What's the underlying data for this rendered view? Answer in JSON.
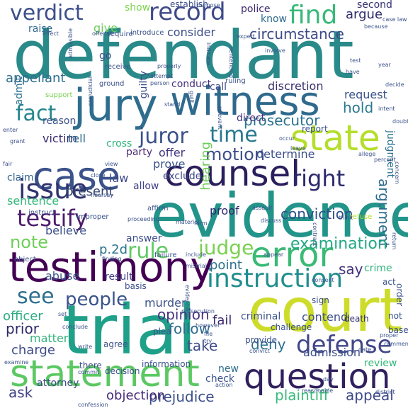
{
  "words": [
    {
      "text": "defendant",
      "color": "#2a8a8a"
    },
    {
      "text": "evidence",
      "color": "#22948a"
    },
    {
      "text": "trial",
      "color": "#1fa088"
    },
    {
      "text": "court",
      "color": "#cddc2a"
    },
    {
      "text": "jury",
      "color": "#2f6d8e"
    },
    {
      "text": "testimony",
      "color": "#440154"
    },
    {
      "text": "witness",
      "color": "#2f6a8d"
    },
    {
      "text": "statement",
      "color": "#5cc863"
    },
    {
      "text": "case",
      "color": "#3b528b"
    },
    {
      "text": "counsel",
      "color": "#2a1e5c"
    },
    {
      "text": "state",
      "color": "#b5de2b"
    },
    {
      "text": "error",
      "color": "#3aba76"
    },
    {
      "text": "question",
      "color": "#31205e"
    },
    {
      "text": "instruction",
      "color": "#218e8d"
    },
    {
      "text": "issue",
      "color": "#30336e"
    },
    {
      "text": "record",
      "color": "#3e4a89"
    },
    {
      "text": "find",
      "color": "#39b87a"
    },
    {
      "text": "verdict",
      "color": "#3c4e8a"
    },
    {
      "text": "fact",
      "color": "#25858e"
    },
    {
      "text": "time",
      "color": "#29788e"
    },
    {
      "text": "motion",
      "color": "#3d4d8a"
    },
    {
      "text": "judge",
      "color": "#7ad151"
    },
    {
      "text": "right",
      "color": "#2c2a6a"
    },
    {
      "text": "juror",
      "color": "#3b528b"
    },
    {
      "text": "defense",
      "color": "#404688"
    },
    {
      "text": "rule",
      "color": "#5ec962"
    },
    {
      "text": "people",
      "color": "#3a538b"
    },
    {
      "text": "see",
      "color": "#2d6f8e"
    },
    {
      "text": "testify",
      "color": "#4e1a6c"
    },
    {
      "text": "note",
      "color": "#6ece58"
    },
    {
      "text": "prosecutor",
      "color": "#2c728e"
    },
    {
      "text": "argument",
      "color": "#2e6c8e"
    },
    {
      "text": "examination",
      "color": "#22a785"
    },
    {
      "text": "conviction",
      "color": "#2f4f88"
    },
    {
      "text": "present",
      "color": "#34466e"
    },
    {
      "text": "plaintiff",
      "color": "#3ab97a"
    },
    {
      "text": "appeal",
      "color": "#3e4989"
    },
    {
      "text": "prejudice",
      "color": "#3c4f8a"
    },
    {
      "text": "objection",
      "color": "#432a74"
    },
    {
      "text": "ask",
      "color": "#414387"
    },
    {
      "text": "charge",
      "color": "#3d4b89"
    },
    {
      "text": "prior",
      "color": "#2c2a68"
    },
    {
      "text": "deny",
      "color": "#2b6f8e"
    },
    {
      "text": "take",
      "color": "#3e4c8a"
    },
    {
      "text": "officer",
      "color": "#2bac82"
    },
    {
      "text": "matter",
      "color": "#36b47e"
    },
    {
      "text": "murder",
      "color": "#3b528b"
    },
    {
      "text": "opinion",
      "color": "#46317e"
    },
    {
      "text": "follow",
      "color": "#2e6b8e"
    },
    {
      "text": "fail",
      "color": "#3a2a6f"
    },
    {
      "text": "point",
      "color": "#2e6f8e"
    },
    {
      "text": "say",
      "color": "#43317c"
    },
    {
      "text": "consider",
      "color": "#3b4d89"
    },
    {
      "text": "circumstance",
      "color": "#3e4a89"
    },
    {
      "text": "argue",
      "color": "#2b2a6c"
    },
    {
      "text": "second",
      "color": "#33306f"
    },
    {
      "text": "police",
      "color": "#3d2a70"
    },
    {
      "text": "know",
      "color": "#2e6a8e"
    },
    {
      "text": "show",
      "color": "#7fd34e"
    },
    {
      "text": "give",
      "color": "#6ccd5a"
    },
    {
      "text": "raise",
      "color": "#31688e"
    },
    {
      "text": "establish",
      "color": "#3c4e8a"
    },
    {
      "text": "appellant",
      "color": "#2e6d8e"
    },
    {
      "text": "discretion",
      "color": "#3a2f6e"
    },
    {
      "text": "hold",
      "color": "#2a788e"
    },
    {
      "text": "request",
      "color": "#3b528b"
    },
    {
      "text": "judgment",
      "color": "#2c728e"
    },
    {
      "text": "admit",
      "color": "#2d718e"
    },
    {
      "text": "victim",
      "color": "#3d2e70"
    },
    {
      "text": "tell",
      "color": "#2f6c8e"
    },
    {
      "text": "cross",
      "color": "#2fb47c"
    },
    {
      "text": "party",
      "color": "#4a2a74"
    },
    {
      "text": "offer",
      "color": "#453781"
    },
    {
      "text": "prove",
      "color": "#3b528b"
    },
    {
      "text": "determine",
      "color": "#3c4e8a"
    },
    {
      "text": "claim",
      "color": "#33628d"
    },
    {
      "text": "law",
      "color": "#3e4989"
    },
    {
      "text": "allow",
      "color": "#414387"
    },
    {
      "text": "exclude",
      "color": "#3f4788"
    },
    {
      "text": "sentence",
      "color": "#35b779"
    },
    {
      "text": "proof",
      "color": "#2c2a6a"
    },
    {
      "text": "believe",
      "color": "#3b4f8a"
    },
    {
      "text": "p.2d",
      "color": "#2c728e"
    },
    {
      "text": "answer",
      "color": "#3d4d8a"
    },
    {
      "text": "abuse",
      "color": "#3b528b"
    },
    {
      "text": "result",
      "color": "#424086"
    },
    {
      "text": "crime",
      "color": "#2fb47c"
    },
    {
      "text": "hearing",
      "color": "#6ece58"
    },
    {
      "text": "guilty",
      "color": "#3d4e8a"
    },
    {
      "text": "conduct",
      "color": "#46327e"
    },
    {
      "text": "call",
      "color": "#3e4c8a"
    },
    {
      "text": "report",
      "color": "#3b528b"
    },
    {
      "text": "direct",
      "color": "#46307c"
    },
    {
      "text": "contend",
      "color": "#3d4d8a"
    },
    {
      "text": "criminal",
      "color": "#3b528b"
    },
    {
      "text": "review",
      "color": "#35b779"
    },
    {
      "text": "admission",
      "color": "#3d4d8a"
    },
    {
      "text": "attorney",
      "color": "#3e4a89"
    },
    {
      "text": "reason",
      "color": "#3b528b"
    },
    {
      "text": "new",
      "color": "#2e6d8e"
    },
    {
      "text": "check",
      "color": "#3b528b"
    },
    {
      "text": "death",
      "color": "#2c2a6a"
    },
    {
      "text": "basis",
      "color": "#3c4e8a"
    },
    {
      "text": "agree",
      "color": "#3b528b"
    },
    {
      "text": "decision",
      "color": "#3b528b"
    },
    {
      "text": "information",
      "color": "#3b528b"
    },
    {
      "text": "there",
      "color": "#3d4d8a"
    },
    {
      "text": "provide",
      "color": "#3b528b"
    },
    {
      "text": "challenge",
      "color": "#3b528b"
    },
    {
      "text": "plea",
      "color": "#3b528b"
    },
    {
      "text": "sign",
      "color": "#3b528b"
    },
    {
      "text": "act",
      "color": "#3b528b"
    },
    {
      "text": "order",
      "color": "#3b528b"
    },
    {
      "text": "not",
      "color": "#3b528b"
    },
    {
      "text": "base",
      "color": "#3b528b"
    },
    {
      "text": "go",
      "color": "#3d4d8a"
    },
    {
      "text": "receive",
      "color": "#3b528b"
    },
    {
      "text": "introduce",
      "color": "#3b528b"
    },
    {
      "text": "require",
      "color": "#3b528b"
    },
    {
      "text": "support",
      "color": "#7ad151"
    },
    {
      "text": "ruling",
      "color": "#3b528b"
    },
    {
      "text": "ground",
      "color": "#3b528b"
    },
    {
      "text": "effect",
      "color": "#3b528b"
    },
    {
      "text": "offense",
      "color": "#3b528b"
    },
    {
      "text": "prosecution",
      "color": "#3b528b"
    },
    {
      "text": "refuse",
      "color": "#b5de2b"
    },
    {
      "text": "failure",
      "color": "#3b528b"
    },
    {
      "text": "include",
      "color": "#3b528b"
    },
    {
      "text": "appear",
      "color": "#3b528b"
    },
    {
      "text": "affirm",
      "color": "#3b528b"
    },
    {
      "text": "improper",
      "color": "#3b528b"
    },
    {
      "text": "instruct",
      "color": "#3b528b"
    },
    {
      "text": "object",
      "color": "#3b528b"
    },
    {
      "text": "finding",
      "color": "#3b528b"
    },
    {
      "text": "material",
      "color": "#3b528b"
    },
    {
      "text": "proceeding",
      "color": "#3b528b"
    },
    {
      "text": "attempt",
      "color": "#3b528b"
    },
    {
      "text": "person",
      "color": "#3b528b"
    },
    {
      "text": "because",
      "color": "#3b528b"
    },
    {
      "text": "year",
      "color": "#3b528b"
    },
    {
      "text": "purpose",
      "color": "#3b528b"
    },
    {
      "text": "expert",
      "color": "#3b528b"
    },
    {
      "text": "involve",
      "color": "#3b528b"
    },
    {
      "text": "properly",
      "color": "#3b528b"
    },
    {
      "text": "indicate",
      "color": "#3b528b"
    },
    {
      "text": "sentencing",
      "color": "#3b528b"
    },
    {
      "text": "admissible",
      "color": "#3b528b"
    },
    {
      "text": "prejudicial",
      "color": "#3b528b"
    },
    {
      "text": "stand",
      "color": "#3b528b"
    },
    {
      "text": "relevant",
      "color": "#3b528b"
    },
    {
      "text": "guilt",
      "color": "#3b528b"
    },
    {
      "text": "occur",
      "color": "#3b528b"
    },
    {
      "text": "leave",
      "color": "#3b528b"
    },
    {
      "text": "allege",
      "color": "#3b528b"
    },
    {
      "text": "percent",
      "color": "#3b528b"
    },
    {
      "text": "concern",
      "color": "#3b528b"
    },
    {
      "text": "doubt",
      "color": "#3b528b"
    },
    {
      "text": "decide",
      "color": "#3b528b"
    },
    {
      "text": "test",
      "color": "#3b528b"
    },
    {
      "text": "have",
      "color": "#3b528b"
    },
    {
      "text": "grant",
      "color": "#3b528b"
    },
    {
      "text": "enter",
      "color": "#3b528b"
    },
    {
      "text": "view",
      "color": "#3b528b"
    },
    {
      "text": "close",
      "color": "#3b528b"
    },
    {
      "text": "hearsay",
      "color": "#3b528b"
    },
    {
      "text": "form",
      "color": "#3b528b"
    },
    {
      "text": "assault",
      "color": "#3b528b"
    },
    {
      "text": "contract",
      "color": "#3b528b"
    },
    {
      "text": "think",
      "color": "#3b528b"
    },
    {
      "text": "return",
      "color": "#3b528b"
    },
    {
      "text": "district",
      "color": "#3b528b"
    },
    {
      "text": "proper",
      "color": "#3b528b"
    },
    {
      "text": "comment",
      "color": "#3b528b"
    },
    {
      "text": "date",
      "color": "#3b528b"
    },
    {
      "text": "convict",
      "color": "#3b528b"
    },
    {
      "text": "day",
      "color": "#3b528b"
    },
    {
      "text": "reasonable",
      "color": "#3b528b"
    },
    {
      "text": "action",
      "color": "#3b528b"
    },
    {
      "text": "commit",
      "color": "#3b528b"
    },
    {
      "text": "write",
      "color": "#3b528b"
    },
    {
      "text": "file",
      "color": "#3b528b"
    },
    {
      "text": "try",
      "color": "#3b528b"
    },
    {
      "text": "however",
      "color": "#3b528b"
    },
    {
      "text": "conclude",
      "color": "#3b528b"
    },
    {
      "text": "confession",
      "color": "#3b528b"
    },
    {
      "text": "examine",
      "color": "#3b528b"
    },
    {
      "text": "set",
      "color": "#3b528b"
    },
    {
      "text": "case law",
      "color": "#3b528b"
    },
    {
      "text": "mistrial",
      "color": "#3b528b"
    },
    {
      "text": "fair",
      "color": "#3b528b"
    },
    {
      "text": "intent",
      "color": "#3b528b"
    },
    {
      "text": "consent",
      "color": "#3b528b"
    },
    {
      "text": "evidentiary",
      "color": "#3b528b"
    },
    {
      "text": "discuss",
      "color": "#3b528b"
    }
  ]
}
